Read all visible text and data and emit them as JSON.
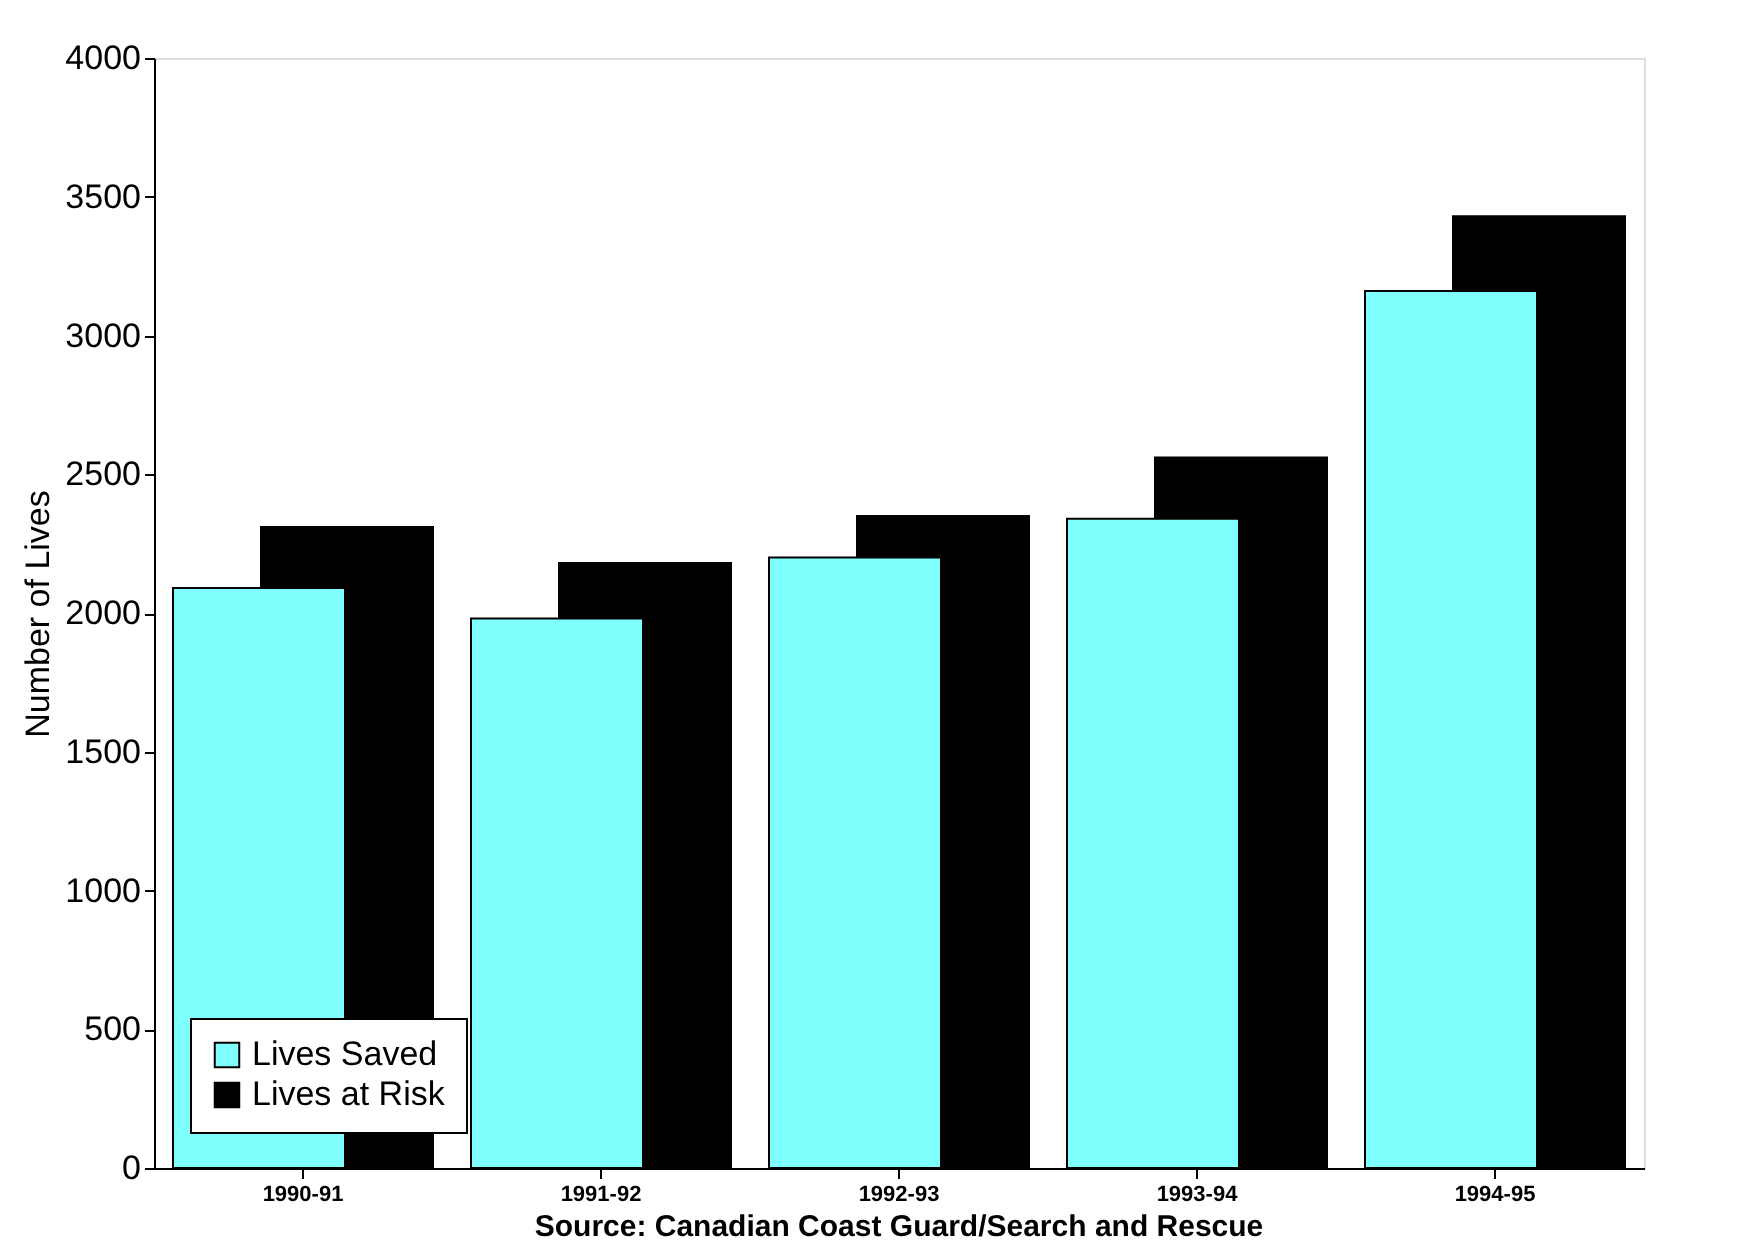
{
  "chart_data": {
    "type": "bar",
    "ylabel": "Number of Lives",
    "annotations": [
      "Source: Canadian Coast Guard/Search and Rescue"
    ],
    "categories": [
      "1990-91",
      "1991-92",
      "1992-93",
      "1993-94",
      "1994-95"
    ],
    "series": [
      {
        "name": "Lives Saved",
        "color": "#80ffff",
        "values": [
          2090,
          1980,
          2200,
          2340,
          3160
        ]
      },
      {
        "name": "Lives at Risk",
        "color": "#000000",
        "values": [
          2310,
          2180,
          2350,
          2560,
          3430
        ]
      }
    ],
    "ylim": [
      0,
      4000
    ],
    "yticks": [
      0,
      500,
      1000,
      1500,
      2000,
      2500,
      3000,
      3500,
      4000
    ],
    "grid": false,
    "legend": "bottom left"
  }
}
